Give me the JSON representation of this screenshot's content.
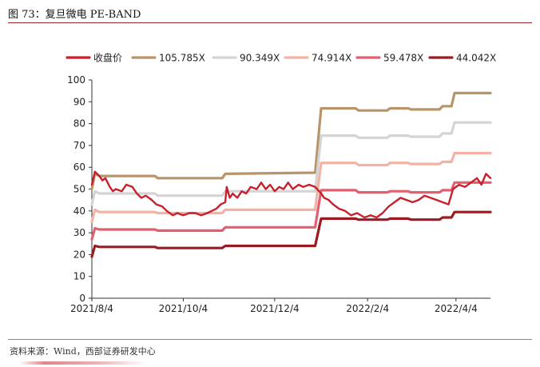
{
  "figure": {
    "title": "图 73：复旦微电 PE-BAND",
    "source": "资料来源：Wind，西部证券研发中心"
  },
  "chart_data": {
    "type": "line",
    "title": "",
    "xlabel": "",
    "ylabel": "",
    "ylim": [
      0,
      100
    ],
    "yticks": [
      0,
      10,
      20,
      30,
      40,
      50,
      60,
      70,
      80,
      90,
      100
    ],
    "grid": false,
    "legend_position": "top",
    "x_tick_labels": [
      {
        "date": "2021-08-04",
        "label": "2021/8/4"
      },
      {
        "date": "2021-10-04",
        "label": "2021/10/4"
      },
      {
        "date": "2021-12-04",
        "label": "2021/12/4"
      },
      {
        "date": "2022-02-04",
        "label": "2022/2/4"
      },
      {
        "date": "2022-04-04",
        "label": "2022/4/4"
      }
    ],
    "x_range": [
      "2021-08-04",
      "2022-04-27"
    ],
    "series": [
      {
        "name": "105.785X",
        "color": "#b8946a",
        "width": 3.2,
        "points": [
          [
            "2021-08-04",
            50
          ],
          [
            "2021-08-06",
            57
          ],
          [
            "2021-08-09",
            56
          ],
          [
            "2021-09-15",
            56
          ],
          [
            "2021-09-17",
            55
          ],
          [
            "2021-10-30",
            55
          ],
          [
            "2021-11-01",
            57
          ],
          [
            "2021-12-31",
            57.5
          ],
          [
            "2022-01-04",
            87
          ],
          [
            "2022-01-27",
            87
          ],
          [
            "2022-01-29",
            86
          ],
          [
            "2022-02-17",
            86
          ],
          [
            "2022-02-19",
            87
          ],
          [
            "2022-03-03",
            87
          ],
          [
            "2022-03-05",
            86.5
          ],
          [
            "2022-03-24",
            86.5
          ],
          [
            "2022-03-26",
            88
          ],
          [
            "2022-04-01",
            88
          ],
          [
            "2022-04-03",
            94
          ],
          [
            "2022-04-27",
            94
          ]
        ]
      },
      {
        "name": "90.349X",
        "color": "#d4d4d4",
        "width": 3.2,
        "points": [
          [
            "2021-08-04",
            43
          ],
          [
            "2021-08-06",
            49
          ],
          [
            "2021-08-09",
            48
          ],
          [
            "2021-09-15",
            48
          ],
          [
            "2021-09-17",
            47
          ],
          [
            "2021-10-30",
            47
          ],
          [
            "2021-11-01",
            49
          ],
          [
            "2021-12-31",
            49
          ],
          [
            "2022-01-04",
            74.5
          ],
          [
            "2022-01-27",
            74.5
          ],
          [
            "2022-01-29",
            73.5
          ],
          [
            "2022-02-17",
            73.5
          ],
          [
            "2022-02-19",
            74.5
          ],
          [
            "2022-03-03",
            74.5
          ],
          [
            "2022-03-05",
            74
          ],
          [
            "2022-03-24",
            74
          ],
          [
            "2022-03-26",
            75.5
          ],
          [
            "2022-04-01",
            75.5
          ],
          [
            "2022-04-03",
            80.5
          ],
          [
            "2022-04-27",
            80.5
          ]
        ]
      },
      {
        "name": "74.914X",
        "color": "#f2b2a4",
        "width": 3.2,
        "points": [
          [
            "2021-08-04",
            35
          ],
          [
            "2021-08-06",
            40.5
          ],
          [
            "2021-08-09",
            39.5
          ],
          [
            "2021-09-15",
            39.5
          ],
          [
            "2021-09-17",
            39
          ],
          [
            "2021-10-30",
            39
          ],
          [
            "2021-11-01",
            40.5
          ],
          [
            "2021-12-31",
            40.5
          ],
          [
            "2022-01-04",
            62
          ],
          [
            "2022-01-27",
            62
          ],
          [
            "2022-01-29",
            61
          ],
          [
            "2022-02-17",
            61
          ],
          [
            "2022-02-19",
            62
          ],
          [
            "2022-03-03",
            62
          ],
          [
            "2022-03-05",
            61.5
          ],
          [
            "2022-03-24",
            61.5
          ],
          [
            "2022-03-26",
            62.5
          ],
          [
            "2022-04-01",
            62.5
          ],
          [
            "2022-04-03",
            66.5
          ],
          [
            "2022-04-27",
            66.5
          ]
        ]
      },
      {
        "name": "59.478X",
        "color": "#e06070",
        "width": 3.2,
        "points": [
          [
            "2021-08-04",
            27
          ],
          [
            "2021-08-06",
            32
          ],
          [
            "2021-08-09",
            31.5
          ],
          [
            "2021-09-15",
            31.5
          ],
          [
            "2021-09-17",
            31
          ],
          [
            "2021-10-30",
            31
          ],
          [
            "2021-11-01",
            32.5
          ],
          [
            "2021-12-31",
            32.5
          ],
          [
            "2022-01-04",
            49.5
          ],
          [
            "2022-01-27",
            49.5
          ],
          [
            "2022-01-29",
            48.5
          ],
          [
            "2022-02-17",
            48.5
          ],
          [
            "2022-02-19",
            49
          ],
          [
            "2022-03-03",
            49
          ],
          [
            "2022-03-05",
            48.5
          ],
          [
            "2022-03-24",
            48.5
          ],
          [
            "2022-03-26",
            49.5
          ],
          [
            "2022-04-01",
            49.5
          ],
          [
            "2022-04-03",
            53
          ],
          [
            "2022-04-27",
            53
          ]
        ]
      },
      {
        "name": "44.042X",
        "color": "#9a1c22",
        "width": 3.2,
        "points": [
          [
            "2021-08-04",
            19
          ],
          [
            "2021-08-06",
            24
          ],
          [
            "2021-08-09",
            23.5
          ],
          [
            "2021-09-15",
            23.5
          ],
          [
            "2021-09-17",
            23
          ],
          [
            "2021-10-30",
            23
          ],
          [
            "2021-11-01",
            24
          ],
          [
            "2021-12-31",
            24
          ],
          [
            "2022-01-04",
            36.5
          ],
          [
            "2022-01-27",
            36.5
          ],
          [
            "2022-01-29",
            36
          ],
          [
            "2022-02-17",
            36
          ],
          [
            "2022-02-19",
            36.5
          ],
          [
            "2022-03-03",
            36.5
          ],
          [
            "2022-03-05",
            36
          ],
          [
            "2022-03-24",
            36
          ],
          [
            "2022-03-26",
            37
          ],
          [
            "2022-04-01",
            37
          ],
          [
            "2022-04-03",
            39.5
          ],
          [
            "2022-04-27",
            39.5
          ]
        ]
      },
      {
        "name": "收盘价",
        "color": "#c8202c",
        "width": 2.4,
        "points": [
          [
            "2021-08-04",
            52
          ],
          [
            "2021-08-06",
            58
          ],
          [
            "2021-08-09",
            56
          ],
          [
            "2021-08-11",
            54
          ],
          [
            "2021-08-13",
            55
          ],
          [
            "2021-08-16",
            51
          ],
          [
            "2021-08-18",
            49
          ],
          [
            "2021-08-20",
            50
          ],
          [
            "2021-08-24",
            49
          ],
          [
            "2021-08-27",
            52
          ],
          [
            "2021-08-31",
            51
          ],
          [
            "2021-09-03",
            48
          ],
          [
            "2021-09-06",
            46
          ],
          [
            "2021-09-09",
            47
          ],
          [
            "2021-09-13",
            45
          ],
          [
            "2021-09-16",
            43
          ],
          [
            "2021-09-20",
            42
          ],
          [
            "2021-09-23",
            40
          ],
          [
            "2021-09-27",
            38
          ],
          [
            "2021-09-30",
            39
          ],
          [
            "2021-10-04",
            38
          ],
          [
            "2021-10-08",
            39
          ],
          [
            "2021-10-12",
            39
          ],
          [
            "2021-10-16",
            38
          ],
          [
            "2021-10-20",
            39
          ],
          [
            "2021-10-23",
            40
          ],
          [
            "2021-10-26",
            41
          ],
          [
            "2021-10-29",
            43
          ],
          [
            "2021-11-01",
            44
          ],
          [
            "2021-11-02",
            51
          ],
          [
            "2021-11-04",
            46
          ],
          [
            "2021-11-06",
            48
          ],
          [
            "2021-11-09",
            46
          ],
          [
            "2021-11-12",
            49
          ],
          [
            "2021-11-15",
            48
          ],
          [
            "2021-11-18",
            51
          ],
          [
            "2021-11-22",
            50
          ],
          [
            "2021-11-25",
            53
          ],
          [
            "2021-11-28",
            50
          ],
          [
            "2021-12-01",
            52
          ],
          [
            "2021-12-04",
            49
          ],
          [
            "2021-12-07",
            51
          ],
          [
            "2021-12-10",
            50
          ],
          [
            "2021-12-13",
            53
          ],
          [
            "2021-12-16",
            50
          ],
          [
            "2021-12-20",
            52
          ],
          [
            "2021-12-23",
            51
          ],
          [
            "2021-12-27",
            52
          ],
          [
            "2021-12-31",
            51
          ],
          [
            "2022-01-04",
            48
          ],
          [
            "2022-01-06",
            46
          ],
          [
            "2022-01-09",
            45
          ],
          [
            "2022-01-12",
            43
          ],
          [
            "2022-01-16",
            41
          ],
          [
            "2022-01-20",
            40
          ],
          [
            "2022-01-24",
            38
          ],
          [
            "2022-01-28",
            39
          ],
          [
            "2022-02-02",
            37
          ],
          [
            "2022-02-06",
            38
          ],
          [
            "2022-02-10",
            37
          ],
          [
            "2022-02-14",
            39
          ],
          [
            "2022-02-18",
            42
          ],
          [
            "2022-02-22",
            44
          ],
          [
            "2022-02-26",
            46
          ],
          [
            "2022-03-02",
            45
          ],
          [
            "2022-03-06",
            44
          ],
          [
            "2022-03-10",
            45
          ],
          [
            "2022-03-14",
            47
          ],
          [
            "2022-03-18",
            46
          ],
          [
            "2022-03-22",
            45
          ],
          [
            "2022-03-26",
            44
          ],
          [
            "2022-03-30",
            43
          ],
          [
            "2022-04-02",
            50
          ],
          [
            "2022-04-06",
            52
          ],
          [
            "2022-04-10",
            51
          ],
          [
            "2022-04-14",
            53
          ],
          [
            "2022-04-18",
            55
          ],
          [
            "2022-04-21",
            52
          ],
          [
            "2022-04-24",
            57
          ],
          [
            "2022-04-27",
            55
          ]
        ]
      }
    ],
    "legend_order": [
      "收盘价",
      "105.785X",
      "90.349X",
      "74.914X",
      "59.478X",
      "44.042X"
    ]
  }
}
